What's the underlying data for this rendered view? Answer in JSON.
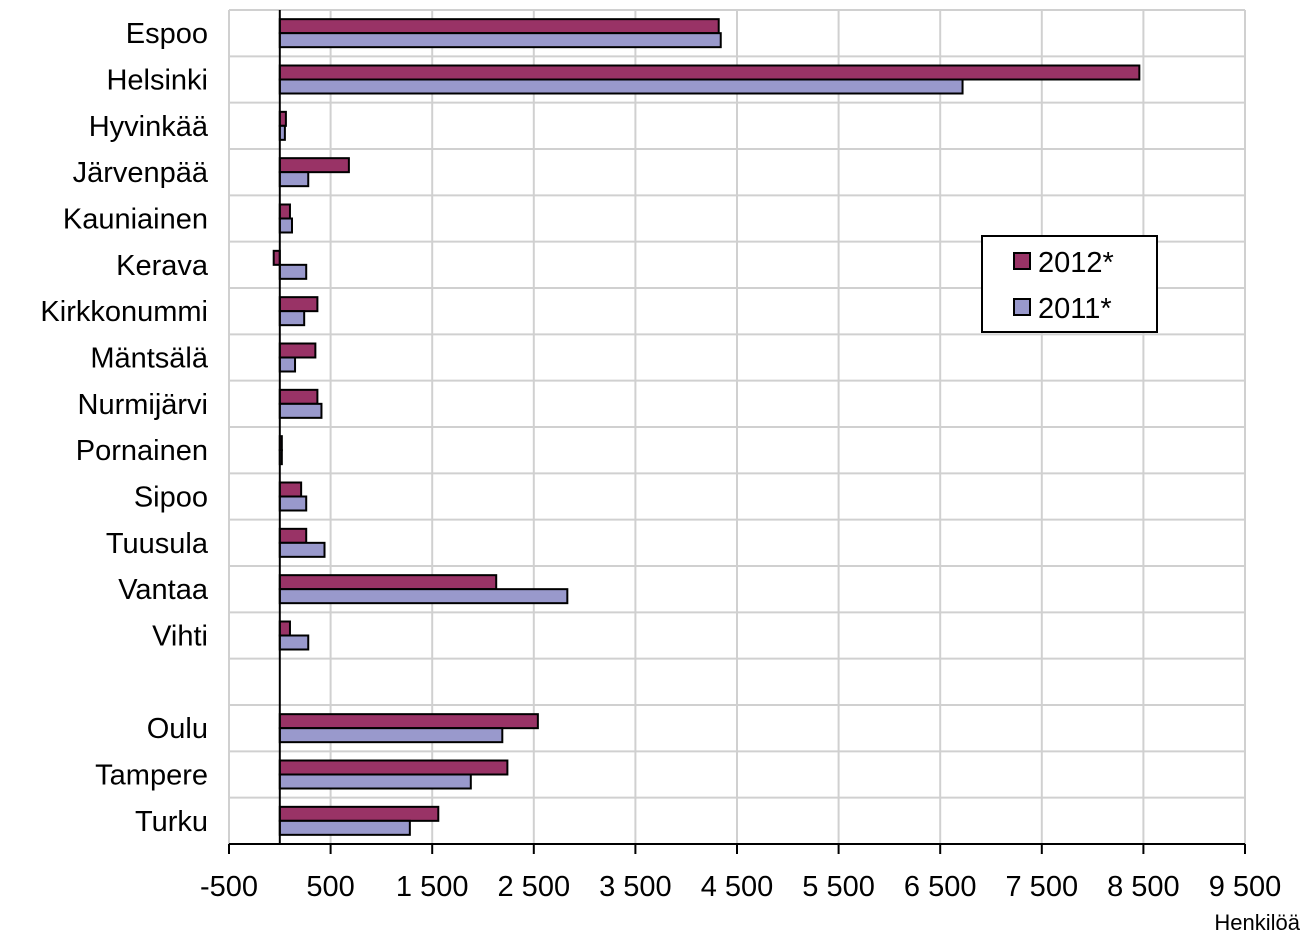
{
  "chart_data": {
    "type": "bar",
    "orientation": "horizontal",
    "categories": [
      "Espoo",
      "Helsinki",
      "Hyvinkää",
      "Järvenpää",
      "Kauniainen",
      "Kerava",
      "Kirkkonummi",
      "Mäntsälä",
      "Nurmijärvi",
      "Pornainen",
      "Sipoo",
      "Tuusula",
      "Vantaa",
      "Vihti",
      "",
      "Oulu",
      "Tampere",
      "Turku"
    ],
    "series": [
      {
        "name": "2012*",
        "color": "#993366",
        "values": [
          4320,
          8460,
          60,
          680,
          100,
          -60,
          370,
          350,
          370,
          20,
          210,
          260,
          2130,
          100,
          null,
          2540,
          2240,
          1560
        ]
      },
      {
        "name": "2011*",
        "color": "#9999cc",
        "values": [
          4340,
          6720,
          50,
          280,
          120,
          260,
          240,
          150,
          410,
          20,
          260,
          440,
          2830,
          280,
          null,
          2190,
          1880,
          1280
        ]
      }
    ],
    "xlim": [
      -500,
      9500
    ],
    "xticks": [
      -500,
      500,
      1500,
      2500,
      3500,
      4500,
      5500,
      6500,
      7500,
      8500,
      9500
    ],
    "xtick_labels": [
      "-500",
      "500",
      "1 500",
      "2 500",
      "3 500",
      "4 500",
      "5 500",
      "6 500",
      "7 500",
      "8 500",
      "9 500"
    ],
    "xlabel": "Henkilöä",
    "grid": true,
    "legend_position": "right"
  }
}
